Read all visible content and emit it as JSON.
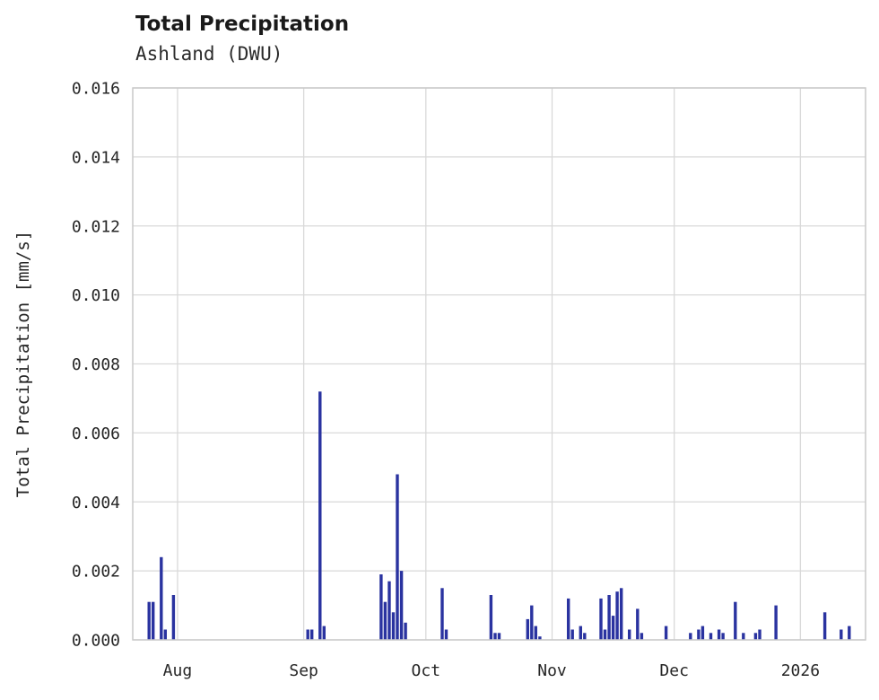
{
  "chart_data": {
    "type": "bar",
    "title": "Total Precipitation",
    "subtitle": "Ashland (DWU)",
    "xlabel": "",
    "ylabel": "Total Precipitation [mm/s]",
    "ylim": [
      0,
      0.016
    ],
    "ytick_labels": [
      "0.000",
      "0.002",
      "0.004",
      "0.006",
      "0.008",
      "0.010",
      "0.012",
      "0.014",
      "0.016"
    ],
    "x_domain": [
      "2025-07-21",
      "2026-01-17"
    ],
    "xticks": [
      {
        "date": "2025-08-01",
        "label": "Aug"
      },
      {
        "date": "2025-09-01",
        "label": "Sep"
      },
      {
        "date": "2025-10-01",
        "label": "Oct"
      },
      {
        "date": "2025-11-01",
        "label": "Nov"
      },
      {
        "date": "2025-12-01",
        "label": "Dec"
      },
      {
        "date": "2026-01-01",
        "label": "2026"
      }
    ],
    "grid": true,
    "legend_position": "none",
    "colors": {
      "bar": "#2a33a0",
      "grid": "#d9d9d9",
      "border": "#c9c9c9",
      "text": "#262626",
      "background": "#ffffff"
    },
    "points": [
      {
        "date": "2025-07-25",
        "value": 0.0011
      },
      {
        "date": "2025-07-26",
        "value": 0.0011
      },
      {
        "date": "2025-07-28",
        "value": 0.0024
      },
      {
        "date": "2025-07-29",
        "value": 0.0003
      },
      {
        "date": "2025-07-31",
        "value": 0.0013
      },
      {
        "date": "2025-09-02",
        "value": 0.0003
      },
      {
        "date": "2025-09-03",
        "value": 0.0003
      },
      {
        "date": "2025-09-05",
        "value": 0.0072
      },
      {
        "date": "2025-09-06",
        "value": 0.0004
      },
      {
        "date": "2025-09-20",
        "value": 0.0019
      },
      {
        "date": "2025-09-21",
        "value": 0.0011
      },
      {
        "date": "2025-09-22",
        "value": 0.0017
      },
      {
        "date": "2025-09-23",
        "value": 0.0008
      },
      {
        "date": "2025-09-24",
        "value": 0.0048
      },
      {
        "date": "2025-09-25",
        "value": 0.002
      },
      {
        "date": "2025-09-26",
        "value": 0.0005
      },
      {
        "date": "2025-10-05",
        "value": 0.0015
      },
      {
        "date": "2025-10-06",
        "value": 0.0003
      },
      {
        "date": "2025-10-17",
        "value": 0.0013
      },
      {
        "date": "2025-10-18",
        "value": 0.0002
      },
      {
        "date": "2025-10-19",
        "value": 0.0002
      },
      {
        "date": "2025-10-26",
        "value": 0.0006
      },
      {
        "date": "2025-10-27",
        "value": 0.001
      },
      {
        "date": "2025-10-28",
        "value": 0.0004
      },
      {
        "date": "2025-10-29",
        "value": 0.0001
      },
      {
        "date": "2025-11-05",
        "value": 0.0012
      },
      {
        "date": "2025-11-06",
        "value": 0.0003
      },
      {
        "date": "2025-11-08",
        "value": 0.0004
      },
      {
        "date": "2025-11-09",
        "value": 0.0002
      },
      {
        "date": "2025-11-13",
        "value": 0.0012
      },
      {
        "date": "2025-11-14",
        "value": 0.0003
      },
      {
        "date": "2025-11-15",
        "value": 0.0013
      },
      {
        "date": "2025-11-16",
        "value": 0.0007
      },
      {
        "date": "2025-11-17",
        "value": 0.0014
      },
      {
        "date": "2025-11-18",
        "value": 0.0015
      },
      {
        "date": "2025-11-20",
        "value": 0.0003
      },
      {
        "date": "2025-11-22",
        "value": 0.0009
      },
      {
        "date": "2025-11-23",
        "value": 0.0002
      },
      {
        "date": "2025-11-29",
        "value": 0.0004
      },
      {
        "date": "2025-12-05",
        "value": 0.0002
      },
      {
        "date": "2025-12-07",
        "value": 0.0003
      },
      {
        "date": "2025-12-08",
        "value": 0.0004
      },
      {
        "date": "2025-12-10",
        "value": 0.0002
      },
      {
        "date": "2025-12-12",
        "value": 0.0003
      },
      {
        "date": "2025-12-13",
        "value": 0.0002
      },
      {
        "date": "2025-12-16",
        "value": 0.0011
      },
      {
        "date": "2025-12-18",
        "value": 0.0002
      },
      {
        "date": "2025-12-21",
        "value": 0.0002
      },
      {
        "date": "2025-12-22",
        "value": 0.0003
      },
      {
        "date": "2025-12-26",
        "value": 0.001
      },
      {
        "date": "2026-01-07",
        "value": 0.0008
      },
      {
        "date": "2026-01-11",
        "value": 0.0003
      },
      {
        "date": "2026-01-13",
        "value": 0.0004
      }
    ]
  }
}
